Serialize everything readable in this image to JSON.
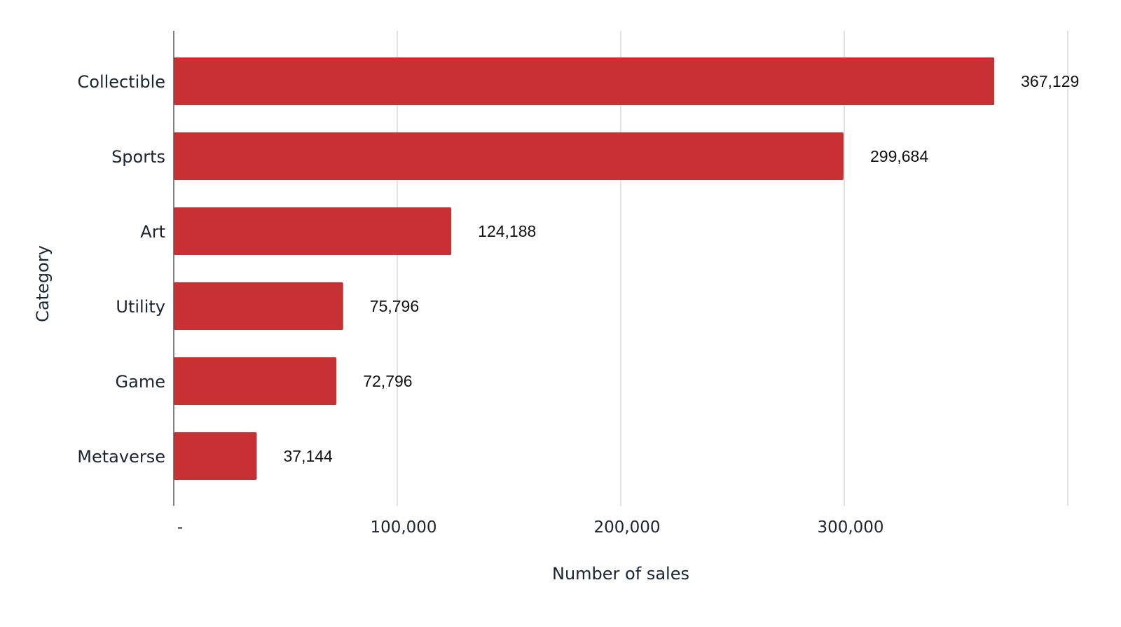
{
  "chart_data": {
    "type": "bar",
    "orientation": "horizontal",
    "categories": [
      "Collectible",
      "Sports",
      "Art",
      "Utility",
      "Game",
      "Metaverse"
    ],
    "values": [
      367129,
      299684,
      124188,
      75796,
      72796,
      37144
    ],
    "value_labels": [
      "367,129",
      "299,684",
      "124,188",
      "75,796",
      "72,796",
      "37,144"
    ],
    "xlabel": "Number of sales",
    "ylabel": "Category",
    "xlim": [
      0,
      400000
    ],
    "x_ticks": [
      0,
      100000,
      200000,
      300000,
      400000
    ],
    "x_tick_labels": [
      "-",
      "100,000",
      "200,000",
      "300,000",
      ""
    ],
    "grid": true,
    "bar_color": "#c83134",
    "grid_color": "#d9d9d9",
    "axis_color": "#555555"
  }
}
